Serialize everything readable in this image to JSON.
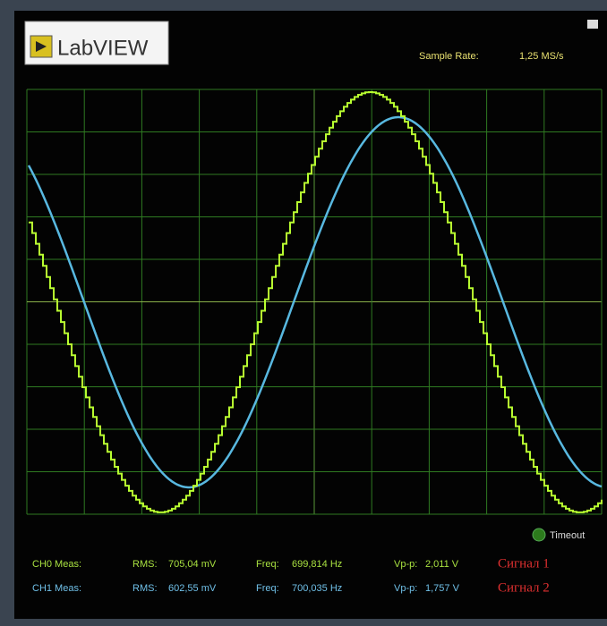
{
  "header": {
    "logo": "LabVIEW",
    "sample_rate_label": "Sample Rate:",
    "sample_rate": "1,25 MS/s"
  },
  "indicator": {
    "label": "Timeout"
  },
  "measurements": [
    {
      "channel": "CH0 Meas:",
      "rms_label": "RMS:",
      "rms": "705,04 mV",
      "freq_label": "Freq:",
      "freq": "699,814 Hz",
      "vpp_label": "Vp-p:",
      "vpp": "2,011 V",
      "signal": "Сигнал 1"
    },
    {
      "channel": "CH1 Meas:",
      "rms_label": "RMS:",
      "rms": "602,55 mV",
      "freq_label": "Freq:",
      "freq": "700,035 Hz",
      "vpp_label": "Vp-p:",
      "vpp": "1,757 V",
      "signal": "Сигнал 2"
    }
  ]
}
